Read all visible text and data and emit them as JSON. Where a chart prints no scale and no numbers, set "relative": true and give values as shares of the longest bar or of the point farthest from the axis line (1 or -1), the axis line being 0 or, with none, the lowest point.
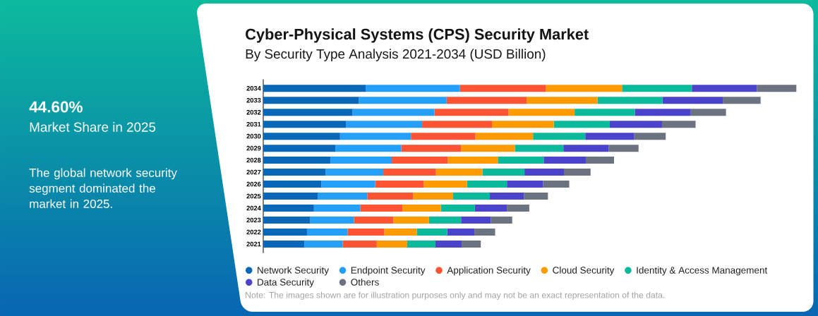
{
  "chart_data": {
    "type": "bar",
    "title": "Cyber-Physical Systems (CPS) Security Market",
    "subtitle": "By Security Type Analysis 2021-2034 (USD Billion)",
    "orientation": "horizontal",
    "stacked": true,
    "relative": true,
    "legend": "bottom",
    "categories": [
      "2034",
      "2033",
      "2032",
      "2031",
      "2030",
      "2029",
      "2028",
      "2027",
      "2026",
      "2025",
      "2024",
      "2023",
      "2022",
      "2021"
    ],
    "series": [
      {
        "name": "Network Security",
        "color": "#0867b6",
        "values": [
          0.192,
          0.179,
          0.167,
          0.155,
          0.144,
          0.135,
          0.126,
          0.117,
          0.109,
          0.102,
          0.095,
          0.088,
          0.082,
          0.077
        ]
      },
      {
        "name": "Endpoint Security",
        "color": "#249ffa",
        "values": [
          0.177,
          0.165,
          0.154,
          0.143,
          0.133,
          0.124,
          0.115,
          0.108,
          0.101,
          0.093,
          0.087,
          0.082,
          0.076,
          0.072
        ]
      },
      {
        "name": "Application Security",
        "color": "#ff5434",
        "values": [
          0.161,
          0.15,
          0.139,
          0.131,
          0.121,
          0.112,
          0.105,
          0.099,
          0.091,
          0.086,
          0.079,
          0.074,
          0.069,
          0.064
        ]
      },
      {
        "name": "Cloud Security",
        "color": "#ff9b00",
        "values": [
          0.143,
          0.133,
          0.124,
          0.116,
          0.108,
          0.101,
          0.094,
          0.087,
          0.081,
          0.075,
          0.072,
          0.067,
          0.061,
          0.057
        ]
      },
      {
        "name": "Identity & Access Management",
        "color": "#0bb99b",
        "values": [
          0.131,
          0.122,
          0.113,
          0.105,
          0.098,
          0.091,
          0.086,
          0.079,
          0.075,
          0.069,
          0.064,
          0.06,
          0.057,
          0.053
        ]
      },
      {
        "name": "Data Security",
        "color": "#4b43cc",
        "values": [
          0.122,
          0.113,
          0.105,
          0.098,
          0.092,
          0.085,
          0.079,
          0.074,
          0.068,
          0.064,
          0.06,
          0.056,
          0.051,
          0.049
        ]
      },
      {
        "name": "Others",
        "color": "#6b7280",
        "values": [
          0.074,
          0.071,
          0.066,
          0.063,
          0.059,
          0.056,
          0.053,
          0.05,
          0.049,
          0.045,
          0.042,
          0.04,
          0.039,
          0.036
        ]
      }
    ],
    "annotations": [
      "44.60%",
      "Market Share in 2025",
      "The global network security segment dominated the market in 2025.",
      "Note: The images shown are for illustration purposes only and may not be an exact representation of the data."
    ]
  }
}
